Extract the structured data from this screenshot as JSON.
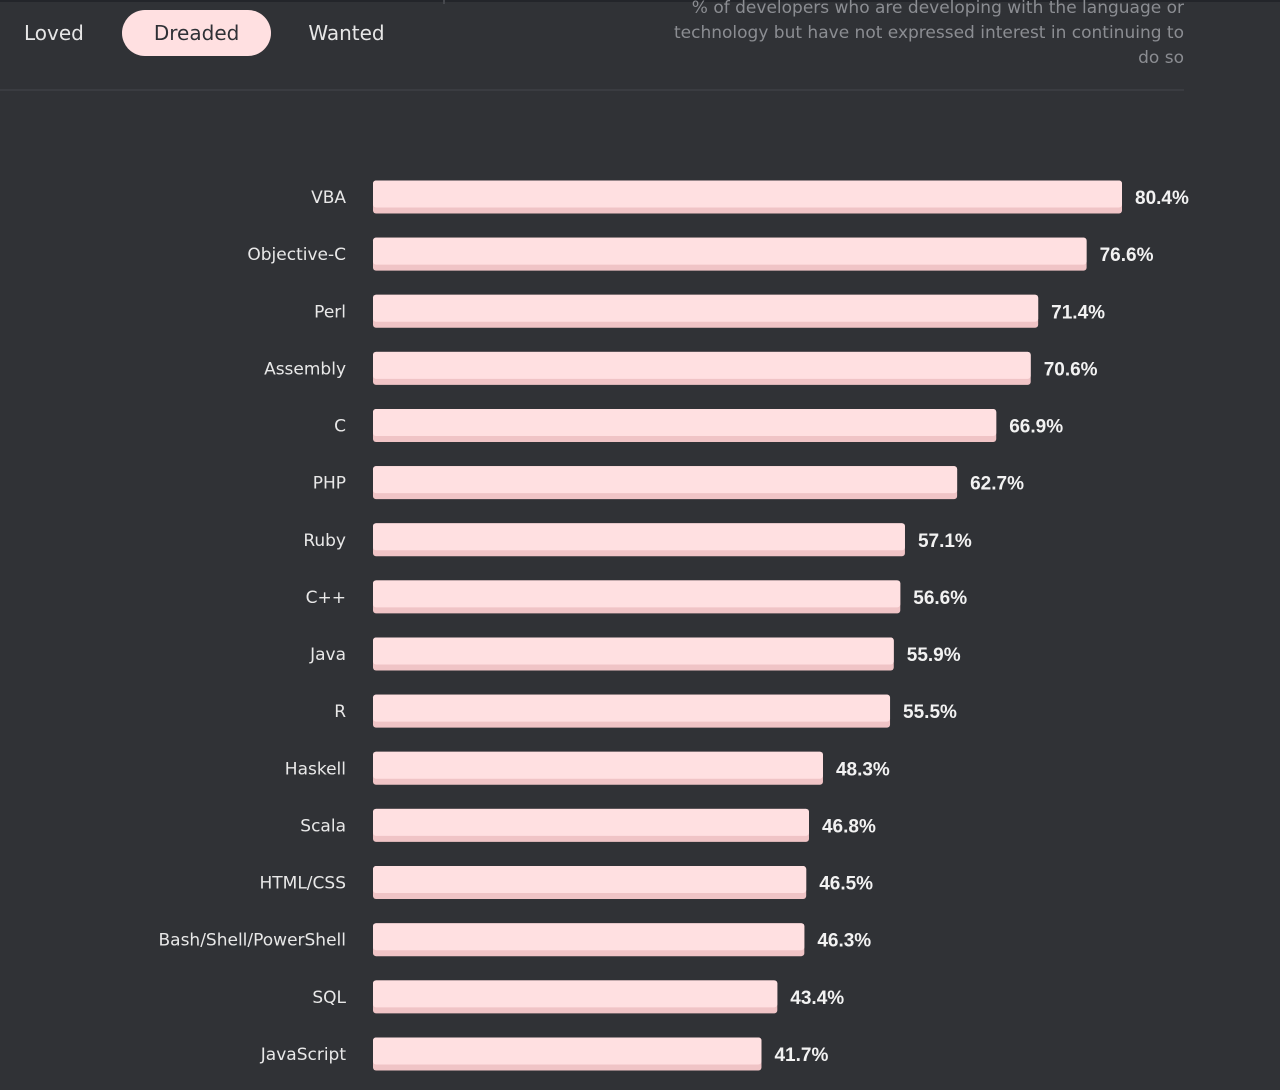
{
  "tabs": [
    {
      "label": "Loved",
      "active": false
    },
    {
      "label": "Dreaded",
      "active": true
    },
    {
      "label": "Wanted",
      "active": false
    }
  ],
  "description": "% of developers who are developing with the language or technology but have not expressed interest in continuing to do so",
  "colors": {
    "background": "#303236",
    "bar": "#ffe0e1",
    "bar_shadow": "#f0c4c6",
    "active_tab": "#ffe0e1",
    "description_text": "#8b8d92"
  },
  "chart_data": {
    "type": "bar",
    "orientation": "horizontal",
    "categories": [
      "VBA",
      "Objective-C",
      "Perl",
      "Assembly",
      "C",
      "PHP",
      "Ruby",
      "C++",
      "Java",
      "R",
      "Haskell",
      "Scala",
      "HTML/CSS",
      "Bash/Shell/PowerShell",
      "SQL",
      "JavaScript"
    ],
    "values": [
      80.4,
      76.6,
      71.4,
      70.6,
      66.9,
      62.7,
      57.1,
      56.6,
      55.9,
      55.5,
      48.3,
      46.8,
      46.5,
      46.3,
      43.4,
      41.7
    ],
    "value_labels": [
      "80.4%",
      "76.6%",
      "71.4%",
      "70.6%",
      "66.9%",
      "62.7%",
      "57.1%",
      "56.6%",
      "55.9%",
      "55.5%",
      "48.3%",
      "46.8%",
      "46.5%",
      "46.3%",
      "43.4%",
      "41.7%"
    ],
    "xlim": [
      0,
      80.4
    ],
    "grid": false,
    "legend": "none"
  }
}
